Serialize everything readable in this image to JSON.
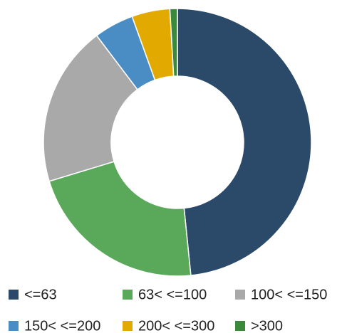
{
  "chart_data": {
    "type": "donut",
    "categories": [
      "<=63",
      "63< <=100",
      "100< <=150",
      "150< <=200",
      "200< <=300",
      ">300"
    ],
    "values": [
      48.4,
      21.9,
      19.4,
      4.8,
      4.6,
      0.9
    ],
    "colors": [
      "#2b4a6a",
      "#5aa95a",
      "#a9a9a9",
      "#4a8cc4",
      "#e2aa00",
      "#3b8a3b"
    ],
    "legend": "bottom"
  }
}
